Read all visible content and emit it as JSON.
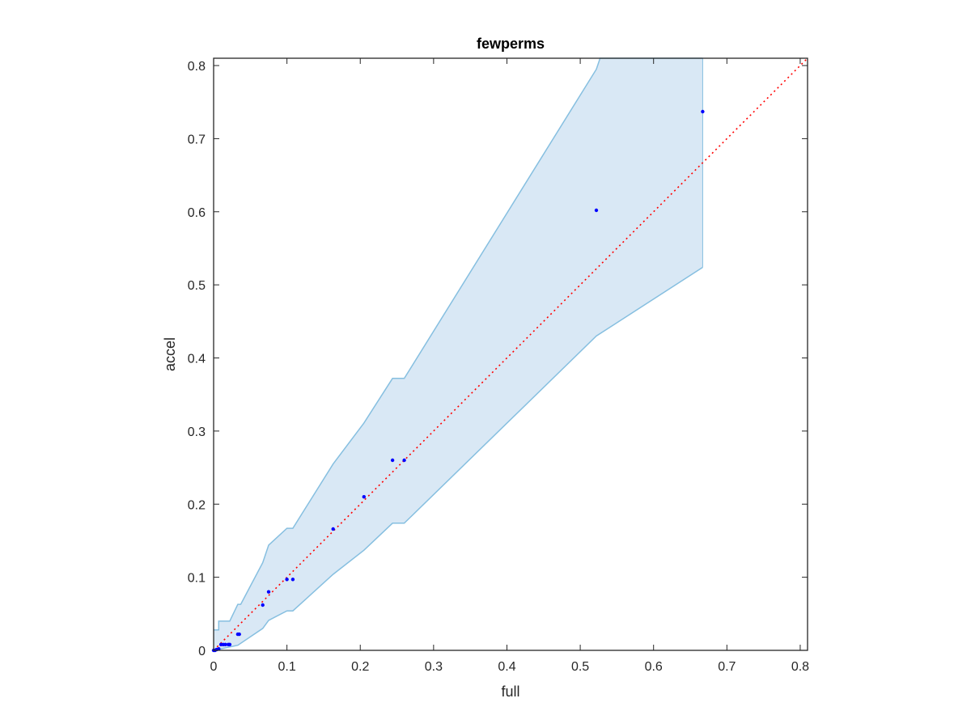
{
  "chart_data": {
    "type": "scatter",
    "title": "fewperms",
    "xlabel": "full",
    "ylabel": "accel",
    "xlim": [
      0,
      0.81
    ],
    "ylim": [
      0,
      0.81
    ],
    "xticks": [
      0,
      0.1,
      0.2,
      0.3,
      0.4,
      0.5,
      0.6,
      0.7,
      0.8
    ],
    "yticks": [
      0,
      0.1,
      0.2,
      0.3,
      0.4,
      0.5,
      0.6,
      0.7,
      0.8
    ],
    "xtick_labels": [
      "0",
      "0.1",
      "0.2",
      "0.3",
      "0.4",
      "0.5",
      "0.6",
      "0.7",
      "0.8"
    ],
    "ytick_labels": [
      "0",
      "0.1",
      "0.2",
      "0.3",
      "0.4",
      "0.5",
      "0.6",
      "0.7",
      "0.8"
    ],
    "grid": false,
    "colors": {
      "band_fill": "#d9e8f5",
      "band_edge": "#86bfe0",
      "points": "#0000ff",
      "reference_line": "#ff0000",
      "axes": "#262626"
    },
    "band": {
      "upper": [
        [
          0,
          0.028
        ],
        [
          0.007,
          0.028
        ],
        [
          0.007,
          0.04
        ],
        [
          0.022,
          0.04
        ],
        [
          0.033,
          0.063
        ],
        [
          0.037,
          0.063
        ],
        [
          0.067,
          0.12
        ],
        [
          0.075,
          0.144
        ],
        [
          0.1,
          0.167
        ],
        [
          0.108,
          0.167
        ],
        [
          0.163,
          0.255
        ],
        [
          0.205,
          0.311
        ],
        [
          0.244,
          0.372
        ],
        [
          0.26,
          0.372
        ],
        [
          0.522,
          0.795
        ],
        [
          0.527,
          0.81
        ],
        [
          0.667,
          0.81
        ]
      ],
      "lower": [
        [
          0,
          0.0
        ],
        [
          0.033,
          0.007
        ],
        [
          0.067,
          0.03
        ],
        [
          0.075,
          0.041
        ],
        [
          0.1,
          0.054
        ],
        [
          0.108,
          0.054
        ],
        [
          0.163,
          0.104
        ],
        [
          0.205,
          0.137
        ],
        [
          0.244,
          0.174
        ],
        [
          0.26,
          0.174
        ],
        [
          0.522,
          0.43
        ],
        [
          0.667,
          0.524
        ]
      ]
    },
    "series": [
      {
        "points": [
          [
            0.0,
            0.0
          ],
          [
            0.002,
            0.0
          ],
          [
            0.004,
            0.001
          ],
          [
            0.007,
            0.002
          ],
          [
            0.01,
            0.008
          ],
          [
            0.013,
            0.008
          ],
          [
            0.016,
            0.008
          ],
          [
            0.02,
            0.008
          ],
          [
            0.022,
            0.008
          ],
          [
            0.033,
            0.022
          ],
          [
            0.035,
            0.022
          ],
          [
            0.067,
            0.062
          ],
          [
            0.075,
            0.08
          ],
          [
            0.1,
            0.097
          ],
          [
            0.108,
            0.097
          ],
          [
            0.163,
            0.166
          ],
          [
            0.205,
            0.21
          ],
          [
            0.244,
            0.26
          ],
          [
            0.26,
            0.26
          ],
          [
            0.522,
            0.602
          ],
          [
            0.667,
            0.737
          ]
        ]
      }
    ],
    "reference_line": [
      [
        0,
        0
      ],
      [
        0.81,
        0.81
      ]
    ]
  }
}
